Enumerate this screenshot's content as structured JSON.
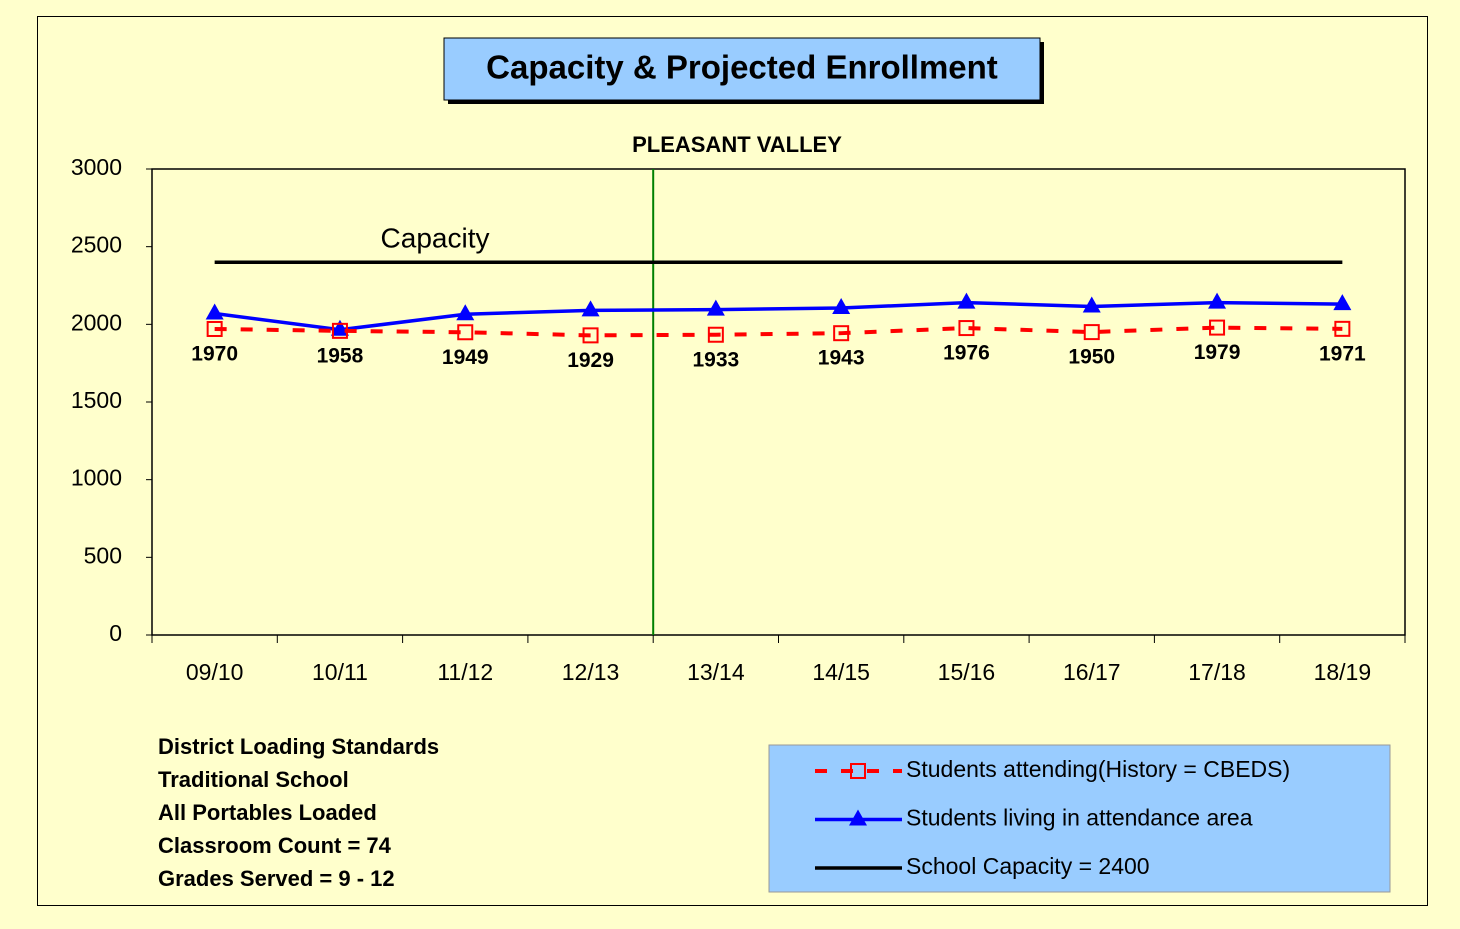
{
  "chart_data": {
    "type": "line",
    "title": "Capacity & Projected Enrollment",
    "subtitle": "PLEASANT VALLEY",
    "annotation": "Capacity",
    "categories": [
      "09/10",
      "10/11",
      "11/12",
      "12/13",
      "13/14",
      "14/15",
      "15/16",
      "16/17",
      "17/18",
      "18/19"
    ],
    "series": [
      {
        "name": "Students attending(History = CBEDS)",
        "color": "#ff0000",
        "style": "dashed",
        "marker": "square",
        "show_values": true,
        "values": [
          1970,
          1958,
          1949,
          1929,
          1933,
          1943,
          1976,
          1950,
          1979,
          1971
        ]
      },
      {
        "name": "Students living in attendance area",
        "color": "#0000ff",
        "style": "solid",
        "marker": "triangle",
        "show_values": false,
        "values": [
          2070,
          1965,
          2065,
          2090,
          2095,
          2105,
          2140,
          2115,
          2140,
          2130
        ]
      },
      {
        "name": "School Capacity = 2400",
        "color": "#000000",
        "style": "solid",
        "marker": "none",
        "show_values": false,
        "values": [
          2400,
          2400,
          2400,
          2400,
          2400,
          2400,
          2400,
          2400,
          2400,
          2400
        ]
      }
    ],
    "ylim": [
      0,
      3000
    ],
    "yticks": [
      0,
      500,
      1000,
      1500,
      2000,
      2500,
      3000
    ],
    "divider": {
      "after_category": 3,
      "color": "#008000"
    },
    "notes": [
      "District Loading Standards",
      "Traditional School",
      "All Portables Loaded",
      "Classroom Count  = 74",
      "Grades Served = 9 - 12"
    ]
  }
}
